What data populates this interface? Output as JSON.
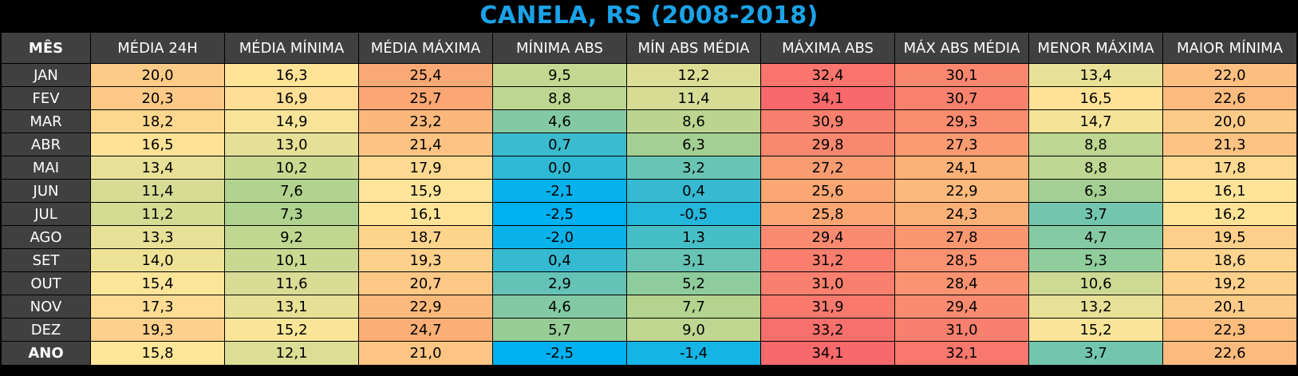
{
  "chart_data": {
    "type": "table",
    "title": "CANELA, RS (2008-2018)",
    "header_label": "MÊS",
    "columns": [
      "MÉDIA 24H",
      "MÉDIA MÍNIMA",
      "MÉDIA MÁXIMA",
      "MÍNIMA ABS",
      "MÍN ABS MÉDIA",
      "MÁXIMA ABS",
      "MÁX ABS MÉDIA",
      "MENOR MÁXIMA",
      "MAIOR MÍNIMA"
    ],
    "rows": [
      {
        "label": "JAN",
        "values": [
          "20,0",
          "16,3",
          "25,4",
          "9,5",
          "12,2",
          "32,4",
          "30,1",
          "13,4",
          "22,0"
        ]
      },
      {
        "label": "FEV",
        "values": [
          "20,3",
          "16,9",
          "25,7",
          "8,8",
          "11,4",
          "34,1",
          "30,7",
          "16,5",
          "22,6"
        ]
      },
      {
        "label": "MAR",
        "values": [
          "18,2",
          "14,9",
          "23,2",
          "4,6",
          "8,6",
          "30,9",
          "29,3",
          "14,7",
          "20,0"
        ]
      },
      {
        "label": "ABR",
        "values": [
          "16,5",
          "13,0",
          "21,4",
          "0,7",
          "6,3",
          "29,8",
          "27,3",
          "8,8",
          "21,3"
        ]
      },
      {
        "label": "MAI",
        "values": [
          "13,4",
          "10,2",
          "17,9",
          "0,0",
          "3,2",
          "27,2",
          "24,1",
          "8,8",
          "17,8"
        ]
      },
      {
        "label": "JUN",
        "values": [
          "11,4",
          "7,6",
          "15,9",
          "-2,1",
          "0,4",
          "25,6",
          "22,9",
          "6,3",
          "16,1"
        ]
      },
      {
        "label": "JUL",
        "values": [
          "11,2",
          "7,3",
          "16,1",
          "-2,5",
          "-0,5",
          "25,8",
          "24,3",
          "3,7",
          "16,2"
        ]
      },
      {
        "label": "AGO",
        "values": [
          "13,3",
          "9,2",
          "18,7",
          "-2,0",
          "1,3",
          "29,4",
          "27,8",
          "4,7",
          "19,5"
        ]
      },
      {
        "label": "SET",
        "values": [
          "14,0",
          "10,1",
          "19,3",
          "0,4",
          "3,1",
          "31,2",
          "28,5",
          "5,3",
          "18,6"
        ]
      },
      {
        "label": "OUT",
        "values": [
          "15,4",
          "11,6",
          "20,7",
          "2,9",
          "5,2",
          "31,0",
          "28,4",
          "10,6",
          "19,2"
        ]
      },
      {
        "label": "NOV",
        "values": [
          "17,3",
          "13,1",
          "22,9",
          "4,6",
          "7,7",
          "31,9",
          "29,4",
          "13,2",
          "20,1"
        ]
      },
      {
        "label": "DEZ",
        "values": [
          "19,3",
          "15,2",
          "24,7",
          "5,7",
          "9,0",
          "33,2",
          "31,0",
          "15,2",
          "22,3"
        ]
      },
      {
        "label": "ANO",
        "values": [
          "15,8",
          "12,1",
          "21,0",
          "-2,5",
          "-1,4",
          "34,1",
          "32,1",
          "3,7",
          "22,6"
        ]
      }
    ],
    "color_scale": {
      "cold": "#00b0f0",
      "mid_cool": "#a9d18e",
      "mid": "#ffe699",
      "warm": "#fbac74",
      "hot": "#f8696b"
    },
    "header_bg": "#404040",
    "title_color": "#1aa3e8"
  }
}
